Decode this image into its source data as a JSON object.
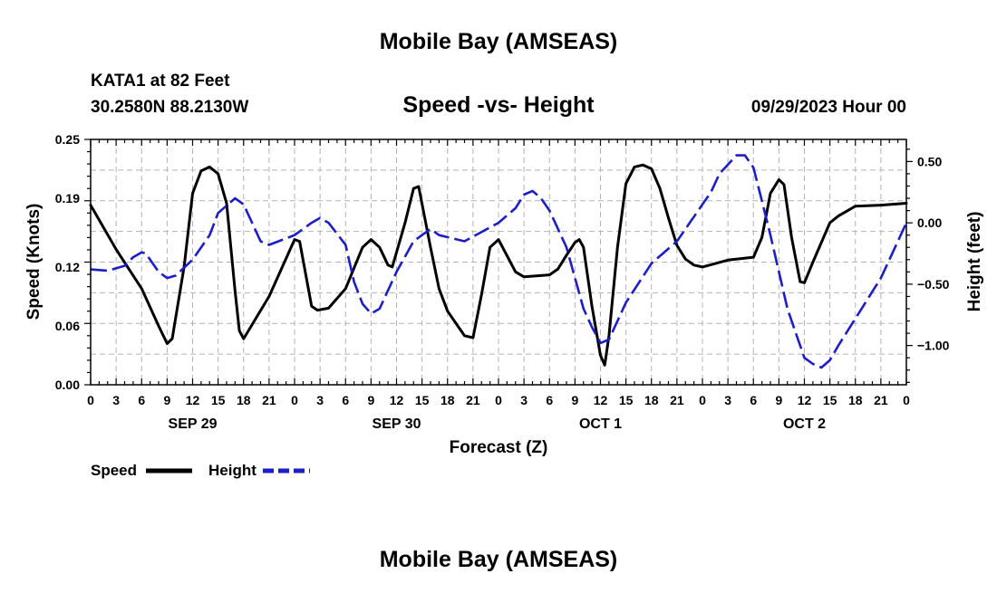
{
  "header": {
    "title": "Mobile Bay (AMSEAS)",
    "station": "KATA1 at 82 Feet",
    "coords": "30.2580N  88.2130W",
    "datetime": "09/29/2023 Hour 00"
  },
  "footer": {
    "title": "Mobile Bay (AMSEAS)"
  },
  "chart_data": {
    "type": "line",
    "title": "Speed -vs- Height",
    "xlabel": "Forecast (Z)",
    "ylabel": "Speed (Knots)",
    "y2label": "Height (feet)",
    "ylim": [
      0,
      0.25
    ],
    "y2lim": [
      -1.32,
      0.68
    ],
    "xlim": [
      0,
      96
    ],
    "yticks": [
      "0.00",
      "0.06",
      "0.12",
      "0.19",
      "0.25"
    ],
    "y2ticks": [
      {
        "v": 0.5,
        "label": "0.50"
      },
      {
        "v": 0.0,
        "label": "0.00"
      },
      {
        "v": -0.5,
        "label": "−0.50"
      },
      {
        "v": -1.0,
        "label": "−1.00"
      }
    ],
    "xticks": [
      {
        "h": 0,
        "label": "0"
      },
      {
        "h": 3,
        "label": "3"
      },
      {
        "h": 6,
        "label": "6"
      },
      {
        "h": 9,
        "label": "9"
      },
      {
        "h": 12,
        "label": "12"
      },
      {
        "h": 15,
        "label": "15"
      },
      {
        "h": 18,
        "label": "18"
      },
      {
        "h": 21,
        "label": "21"
      },
      {
        "h": 24,
        "label": "0"
      },
      {
        "h": 27,
        "label": "3"
      },
      {
        "h": 30,
        "label": "6"
      },
      {
        "h": 33,
        "label": "9"
      },
      {
        "h": 36,
        "label": "12"
      },
      {
        "h": 39,
        "label": "15"
      },
      {
        "h": 42,
        "label": "18"
      },
      {
        "h": 45,
        "label": "21"
      },
      {
        "h": 48,
        "label": "0"
      },
      {
        "h": 51,
        "label": "3"
      },
      {
        "h": 54,
        "label": "6"
      },
      {
        "h": 57,
        "label": "9"
      },
      {
        "h": 60,
        "label": "12"
      },
      {
        "h": 63,
        "label": "15"
      },
      {
        "h": 66,
        "label": "18"
      },
      {
        "h": 69,
        "label": "21"
      },
      {
        "h": 72,
        "label": "0"
      },
      {
        "h": 75,
        "label": "3"
      },
      {
        "h": 78,
        "label": "6"
      },
      {
        "h": 81,
        "label": "9"
      },
      {
        "h": 84,
        "label": "12"
      },
      {
        "h": 87,
        "label": "15"
      },
      {
        "h": 90,
        "label": "18"
      },
      {
        "h": 93,
        "label": "21"
      },
      {
        "h": 96,
        "label": "0"
      }
    ],
    "date_labels": [
      {
        "h": 12,
        "label": "SEP 29"
      },
      {
        "h": 36,
        "label": "SEP 30"
      },
      {
        "h": 60,
        "label": "OCT 1"
      },
      {
        "h": 84,
        "label": "OCT 2"
      }
    ],
    "legend_placement": "bottom-left",
    "grid": true,
    "series": [
      {
        "name": "Speed",
        "axis": "left",
        "color": "#000000",
        "style": "solid",
        "points": [
          [
            0,
            0.183
          ],
          [
            3,
            0.138
          ],
          [
            6,
            0.098
          ],
          [
            8,
            0.06
          ],
          [
            9,
            0.042
          ],
          [
            9.6,
            0.047
          ],
          [
            11,
            0.12
          ],
          [
            12,
            0.195
          ],
          [
            13,
            0.218
          ],
          [
            14,
            0.222
          ],
          [
            15,
            0.215
          ],
          [
            16,
            0.185
          ],
          [
            17,
            0.095
          ],
          [
            17.5,
            0.055
          ],
          [
            18,
            0.047
          ],
          [
            21,
            0.09
          ],
          [
            24,
            0.148
          ],
          [
            24.6,
            0.146
          ],
          [
            26,
            0.08
          ],
          [
            26.7,
            0.076
          ],
          [
            28,
            0.078
          ],
          [
            30,
            0.098
          ],
          [
            32,
            0.14
          ],
          [
            33,
            0.148
          ],
          [
            34,
            0.14
          ],
          [
            35,
            0.122
          ],
          [
            35.5,
            0.12
          ],
          [
            37,
            0.165
          ],
          [
            38,
            0.2
          ],
          [
            38.6,
            0.202
          ],
          [
            40,
            0.14
          ],
          [
            41,
            0.098
          ],
          [
            42,
            0.075
          ],
          [
            44,
            0.05
          ],
          [
            45,
            0.048
          ],
          [
            46,
            0.092
          ],
          [
            47,
            0.14
          ],
          [
            48,
            0.148
          ],
          [
            50,
            0.115
          ],
          [
            51,
            0.11
          ],
          [
            54,
            0.112
          ],
          [
            55,
            0.118
          ],
          [
            56,
            0.132
          ],
          [
            57,
            0.145
          ],
          [
            57.5,
            0.148
          ],
          [
            58,
            0.14
          ],
          [
            59,
            0.08
          ],
          [
            60,
            0.03
          ],
          [
            60.5,
            0.02
          ],
          [
            61,
            0.05
          ],
          [
            62,
            0.14
          ],
          [
            63,
            0.205
          ],
          [
            64,
            0.222
          ],
          [
            65,
            0.224
          ],
          [
            66,
            0.22
          ],
          [
            67,
            0.2
          ],
          [
            68,
            0.17
          ],
          [
            69,
            0.142
          ],
          [
            70,
            0.128
          ],
          [
            71,
            0.122
          ],
          [
            72,
            0.12
          ],
          [
            75,
            0.127
          ],
          [
            78,
            0.13
          ],
          [
            79,
            0.15
          ],
          [
            80,
            0.195
          ],
          [
            81,
            0.209
          ],
          [
            81.6,
            0.204
          ],
          [
            82.5,
            0.15
          ],
          [
            83.5,
            0.105
          ],
          [
            84,
            0.104
          ],
          [
            85,
            0.125
          ],
          [
            87,
            0.165
          ],
          [
            88,
            0.172
          ],
          [
            90,
            0.182
          ],
          [
            93,
            0.183
          ],
          [
            96,
            0.185
          ]
        ]
      },
      {
        "name": "Height",
        "axis": "right",
        "color": "#1e1ec8",
        "style": "dashed",
        "points": [
          [
            0,
            -0.38
          ],
          [
            2,
            -0.39
          ],
          [
            4,
            -0.35
          ],
          [
            5,
            -0.28
          ],
          [
            6,
            -0.24
          ],
          [
            6.5,
            -0.25
          ],
          [
            8,
            -0.4
          ],
          [
            9,
            -0.45
          ],
          [
            10,
            -0.43
          ],
          [
            12,
            -0.3
          ],
          [
            14,
            -0.1
          ],
          [
            15,
            0.08
          ],
          [
            17,
            0.2
          ],
          [
            18,
            0.15
          ],
          [
            20,
            -0.15
          ],
          [
            21,
            -0.18
          ],
          [
            24,
            -0.1
          ],
          [
            26,
            0.0
          ],
          [
            27,
            0.04
          ],
          [
            28,
            0.0
          ],
          [
            30,
            -0.18
          ],
          [
            31,
            -0.48
          ],
          [
            32,
            -0.66
          ],
          [
            33,
            -0.74
          ],
          [
            34,
            -0.7
          ],
          [
            36,
            -0.4
          ],
          [
            38,
            -0.15
          ],
          [
            40,
            -0.05
          ],
          [
            41,
            -0.1
          ],
          [
            44,
            -0.15
          ],
          [
            48,
            0.0
          ],
          [
            50,
            0.12
          ],
          [
            51,
            0.23
          ],
          [
            52,
            0.26
          ],
          [
            53,
            0.2
          ],
          [
            54,
            0.1
          ],
          [
            56,
            -0.2
          ],
          [
            57,
            -0.45
          ],
          [
            58,
            -0.7
          ],
          [
            59,
            -0.85
          ],
          [
            60,
            -0.98
          ],
          [
            61,
            -0.95
          ],
          [
            62,
            -0.8
          ],
          [
            63,
            -0.65
          ],
          [
            66,
            -0.33
          ],
          [
            69,
            -0.15
          ],
          [
            72,
            0.15
          ],
          [
            73,
            0.25
          ],
          [
            74,
            0.4
          ],
          [
            76,
            0.55
          ],
          [
            77,
            0.55
          ],
          [
            78,
            0.45
          ],
          [
            79,
            0.18
          ],
          [
            80,
            -0.1
          ],
          [
            81,
            -0.4
          ],
          [
            82,
            -0.7
          ],
          [
            83,
            -0.9
          ],
          [
            84,
            -1.1
          ],
          [
            85,
            -1.15
          ],
          [
            86,
            -1.18
          ],
          [
            87,
            -1.12
          ],
          [
            88,
            -1.0
          ],
          [
            90,
            -0.78
          ],
          [
            93,
            -0.45
          ],
          [
            94,
            -0.3
          ],
          [
            96,
            0.0
          ]
        ]
      }
    ]
  }
}
